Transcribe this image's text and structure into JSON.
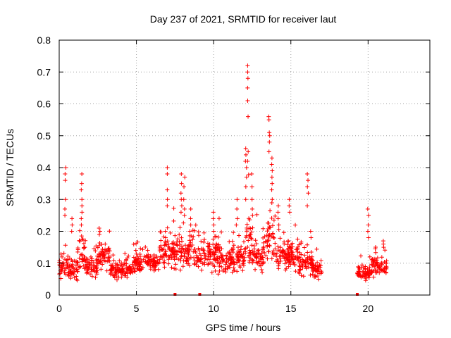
{
  "chart_data": {
    "type": "scatter",
    "title": "Day 237 of 2021, SRMTID for receiver laut",
    "xlabel": "GPS time / hours",
    "ylabel": "SRMTID / TECUs",
    "xlim": [
      0,
      24
    ],
    "ylim": [
      0,
      0.8
    ],
    "xticks": [
      0,
      5,
      10,
      15,
      20
    ],
    "xtick_labels": [
      "0",
      "5",
      "10",
      "15",
      "20"
    ],
    "yticks": [
      0,
      0.1,
      0.2,
      0.3,
      0.4,
      0.5,
      0.6,
      0.7,
      0.8
    ],
    "ytick_labels": [
      "0",
      "0.1",
      "0.2",
      "0.3",
      "0.4",
      "0.5",
      "0.6",
      "0.7",
      "0.8"
    ],
    "grid": true,
    "legend": "none",
    "marker": "+",
    "color": "#ff0000",
    "segments": [
      {
        "start": 0.0,
        "end": 0.6,
        "base": 0.09,
        "spread": 0.05
      },
      {
        "start": 0.6,
        "end": 1.2,
        "base": 0.08,
        "spread": 0.045
      },
      {
        "start": 1.2,
        "end": 1.7,
        "base": 0.13,
        "spread": 0.07
      },
      {
        "start": 1.7,
        "end": 2.5,
        "base": 0.09,
        "spread": 0.045
      },
      {
        "start": 2.5,
        "end": 3.3,
        "base": 0.12,
        "spread": 0.05
      },
      {
        "start": 3.3,
        "end": 4.8,
        "base": 0.08,
        "spread": 0.035
      },
      {
        "start": 4.8,
        "end": 6.5,
        "base": 0.1,
        "spread": 0.04
      },
      {
        "start": 6.5,
        "end": 7.4,
        "base": 0.13,
        "spread": 0.06
      },
      {
        "start": 7.4,
        "end": 8.8,
        "base": 0.13,
        "spread": 0.08
      },
      {
        "start": 8.8,
        "end": 10.5,
        "base": 0.12,
        "spread": 0.06
      },
      {
        "start": 10.5,
        "end": 12.0,
        "base": 0.11,
        "spread": 0.06
      },
      {
        "start": 12.0,
        "end": 12.5,
        "base": 0.17,
        "spread": 0.1
      },
      {
        "start": 12.5,
        "end": 13.4,
        "base": 0.12,
        "spread": 0.06
      },
      {
        "start": 13.4,
        "end": 14.0,
        "base": 0.18,
        "spread": 0.1
      },
      {
        "start": 14.0,
        "end": 15.5,
        "base": 0.12,
        "spread": 0.06
      },
      {
        "start": 15.5,
        "end": 16.4,
        "base": 0.1,
        "spread": 0.05
      },
      {
        "start": 16.4,
        "end": 17.0,
        "base": 0.08,
        "spread": 0.04
      },
      {
        "start": 19.3,
        "end": 20.2,
        "base": 0.07,
        "spread": 0.03
      },
      {
        "start": 20.2,
        "end": 21.2,
        "base": 0.09,
        "spread": 0.045
      }
    ],
    "spikes": [
      {
        "x": 0.4,
        "values": [
          0.4,
          0.38,
          0.36,
          0.3,
          0.27,
          0.25
        ]
      },
      {
        "x": 0.8,
        "values": [
          0.24,
          0.22,
          0.2
        ]
      },
      {
        "x": 1.45,
        "values": [
          0.38,
          0.35,
          0.33,
          0.3,
          0.28,
          0.26,
          0.24,
          0.22
        ]
      },
      {
        "x": 2.6,
        "values": [
          0.21,
          0.2,
          0.19
        ]
      },
      {
        "x": 6.9,
        "values": [
          0.2,
          0.18,
          0.16
        ]
      },
      {
        "x": 7.0,
        "values": [
          0.4,
          0.38,
          0.33,
          0.3,
          0.28
        ]
      },
      {
        "x": 7.9,
        "values": [
          0.38,
          0.35,
          0.32,
          0.3,
          0.28,
          0.26
        ]
      },
      {
        "x": 8.1,
        "values": [
          0.37,
          0.34,
          0.3,
          0.27,
          0.25
        ]
      },
      {
        "x": 8.5,
        "values": [
          0.27,
          0.24,
          0.22,
          0.2
        ]
      },
      {
        "x": 10.0,
        "values": [
          0.26,
          0.24,
          0.22,
          0.2
        ]
      },
      {
        "x": 11.5,
        "values": [
          0.3,
          0.27,
          0.24,
          0.22
        ]
      },
      {
        "x": 12.1,
        "values": [
          0.46,
          0.44,
          0.42,
          0.4,
          0.37,
          0.34,
          0.3
        ]
      },
      {
        "x": 12.2,
        "values": [
          0.72,
          0.7,
          0.68,
          0.65,
          0.61,
          0.56,
          0.45,
          0.42
        ]
      },
      {
        "x": 12.5,
        "values": [
          0.38,
          0.34,
          0.3,
          0.27,
          0.25
        ]
      },
      {
        "x": 13.6,
        "values": [
          0.56,
          0.55,
          0.51,
          0.5,
          0.48,
          0.45
        ]
      },
      {
        "x": 13.8,
        "values": [
          0.43,
          0.41,
          0.39,
          0.37,
          0.35,
          0.33,
          0.3
        ]
      },
      {
        "x": 14.2,
        "values": [
          0.28,
          0.26,
          0.24,
          0.22
        ]
      },
      {
        "x": 14.9,
        "values": [
          0.3,
          0.28,
          0.26
        ]
      },
      {
        "x": 16.1,
        "values": [
          0.38,
          0.36,
          0.34,
          0.32,
          0.28
        ]
      },
      {
        "x": 16.3,
        "values": [
          0.2,
          0.18
        ]
      },
      {
        "x": 20.0,
        "values": [
          0.27,
          0.25,
          0.22,
          0.2,
          0.18
        ]
      },
      {
        "x": 21.0,
        "values": [
          0.17,
          0.16,
          0.15
        ]
      }
    ],
    "baseline_markers": [
      7.5,
      9.1,
      19.3
    ]
  }
}
